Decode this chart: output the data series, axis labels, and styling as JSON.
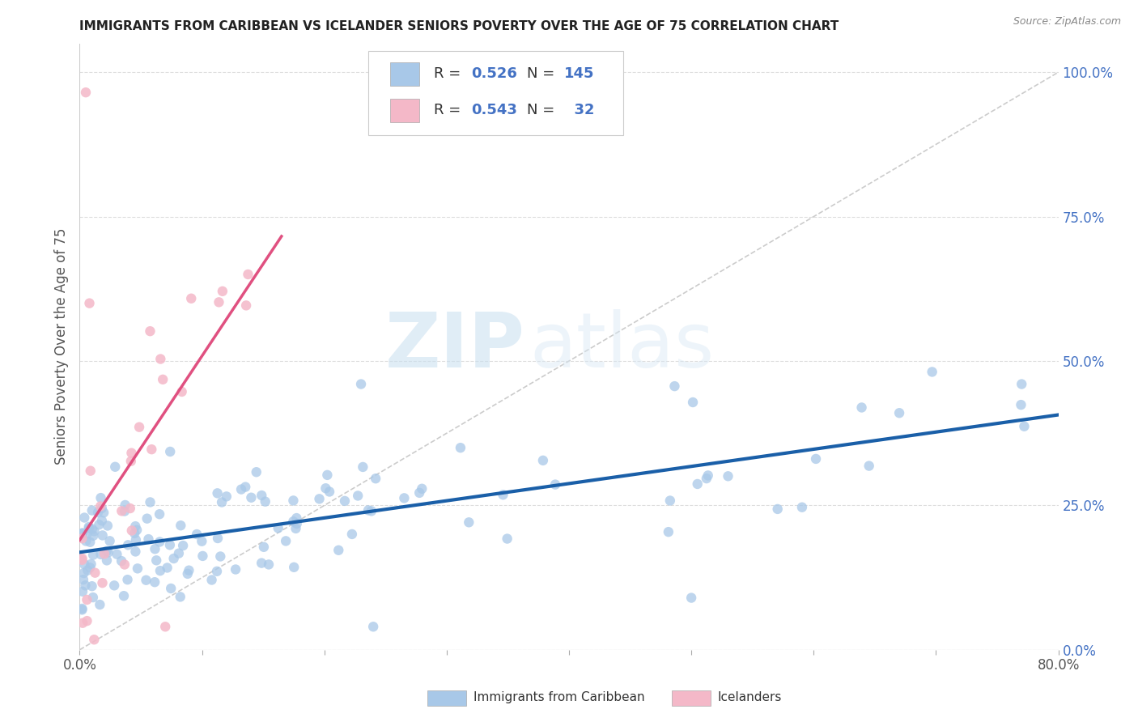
{
  "title": "IMMIGRANTS FROM CARIBBEAN VS ICELANDER SENIORS POVERTY OVER THE AGE OF 75 CORRELATION CHART",
  "source": "Source: ZipAtlas.com",
  "ylabel_label": "Seniors Poverty Over the Age of 75",
  "right_yticks": [
    0.0,
    0.25,
    0.5,
    0.75,
    1.0
  ],
  "right_ytick_labels": [
    "0.0%",
    "25.0%",
    "50.0%",
    "75.0%",
    "100.0%"
  ],
  "blue_R": 0.526,
  "blue_N": 145,
  "pink_R": 0.543,
  "pink_N": 32,
  "blue_color": "#a8c8e8",
  "pink_color": "#f4b8c8",
  "blue_line_color": "#1a5fa8",
  "pink_line_color": "#e05080",
  "diagonal_color": "#cccccc",
  "legend_blue_label": "Immigrants from Caribbean",
  "legend_pink_label": "Icelanders",
  "watermark_zip": "ZIP",
  "watermark_atlas": "atlas",
  "xlim": [
    0.0,
    0.8
  ],
  "ylim": [
    0.0,
    1.05
  ],
  "blue_seed": 42,
  "pink_seed": 99
}
